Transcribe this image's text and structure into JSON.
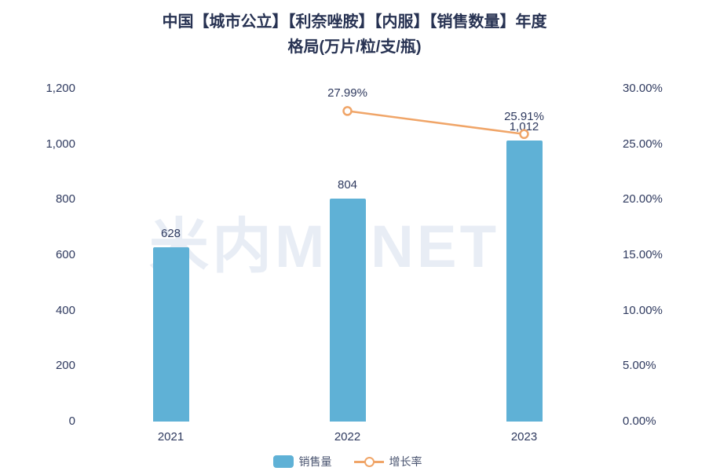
{
  "title_line1": "中国【城市公立】【利奈唑胺】【内服】【销售数量】年度",
  "title_line2": "格局(万片/粒/支/瓶)",
  "watermark": "米内MENET",
  "colors": {
    "bar": "#5fb1d6",
    "line": "#f0a568",
    "title": "#273252",
    "axis_text": "#2f3a5f"
  },
  "chart_data": {
    "type": "bar+line",
    "title": "中国【城市公立】【利奈唑胺】【内服】【销售数量】年度格局(万片/粒/支/瓶)",
    "categories": [
      "2021",
      "2022",
      "2023"
    ],
    "series": [
      {
        "name": "销售量",
        "type": "bar",
        "axis": "left",
        "values": [
          628,
          804,
          1012
        ],
        "labels": [
          "628",
          "804",
          "1,012"
        ]
      },
      {
        "name": "增长率",
        "type": "line",
        "axis": "right",
        "values": [
          null,
          27.99,
          25.91
        ],
        "labels": [
          "",
          "27.99%",
          "25.91%"
        ]
      }
    ],
    "left_axis": {
      "min": 0,
      "max": 1200,
      "ticks": [
        "1,200",
        "1,000",
        "800",
        "600",
        "400",
        "200",
        "0"
      ]
    },
    "right_axis": {
      "min": 0,
      "max": 30,
      "ticks": [
        "30.00%",
        "25.00%",
        "20.00%",
        "15.00%",
        "10.00%",
        "5.00%",
        "0.00%"
      ]
    },
    "grid": false,
    "legend_position": "bottom",
    "legend": [
      {
        "label": "销售量",
        "type": "bar"
      },
      {
        "label": "增长率",
        "type": "line"
      }
    ]
  }
}
